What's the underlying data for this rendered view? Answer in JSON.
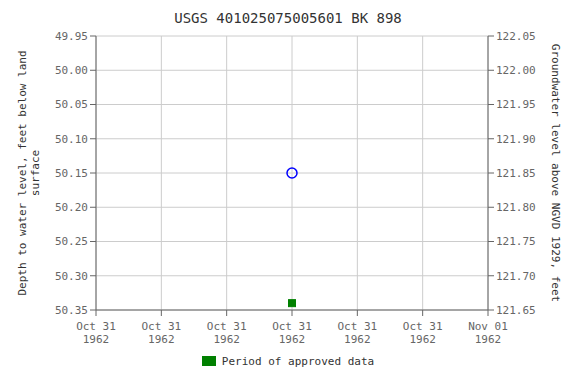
{
  "chart_data": {
    "type": "scatter",
    "title": "USGS 401025075005601 BK   898",
    "ylabel": "Depth to water level, feet below land\nsurface",
    "y2label": "Groundwater level above NGVD 1929, feet",
    "categories": [
      "Oct 31\n1962",
      "Oct 31\n1962",
      "Oct 31\n1962",
      "Oct 31\n1962",
      "Oct 31\n1962",
      "Oct 31\n1962",
      "Nov 01\n1962"
    ],
    "series": [
      {
        "color": "blue",
        "marker": "circle",
        "values": [
          null,
          null,
          null,
          50.15,
          null,
          null,
          null
        ]
      },
      {
        "name": "Period of approved data",
        "color": "green",
        "marker": "square",
        "values": [
          null,
          null,
          null,
          50.34,
          null,
          null,
          null
        ]
      }
    ],
    "ylim": [
      50.35,
      49.95
    ],
    "yticks": [
      49.95,
      {
        "value": 50.0,
        "label": "50.00"
      },
      50.05,
      {
        "value": 50.1,
        "label": "50.10"
      },
      50.15,
      {
        "value": 50.2,
        "label": "50.20"
      },
      50.25,
      {
        "value": 50.3,
        "label": "50.30"
      },
      50.35
    ],
    "y2lim": [
      121.65,
      122.05
    ],
    "y2ticks": [
      122.05,
      {
        "value": 122.0,
        "label": "122.00"
      },
      121.95,
      {
        "value": 121.9,
        "label": "121.90"
      },
      121.85,
      {
        "value": 121.8,
        "label": "121.80"
      },
      121.75,
      {
        "value": 121.7,
        "label": "121.70"
      },
      121.65
    ],
    "grid": true,
    "legend": "bottom"
  }
}
